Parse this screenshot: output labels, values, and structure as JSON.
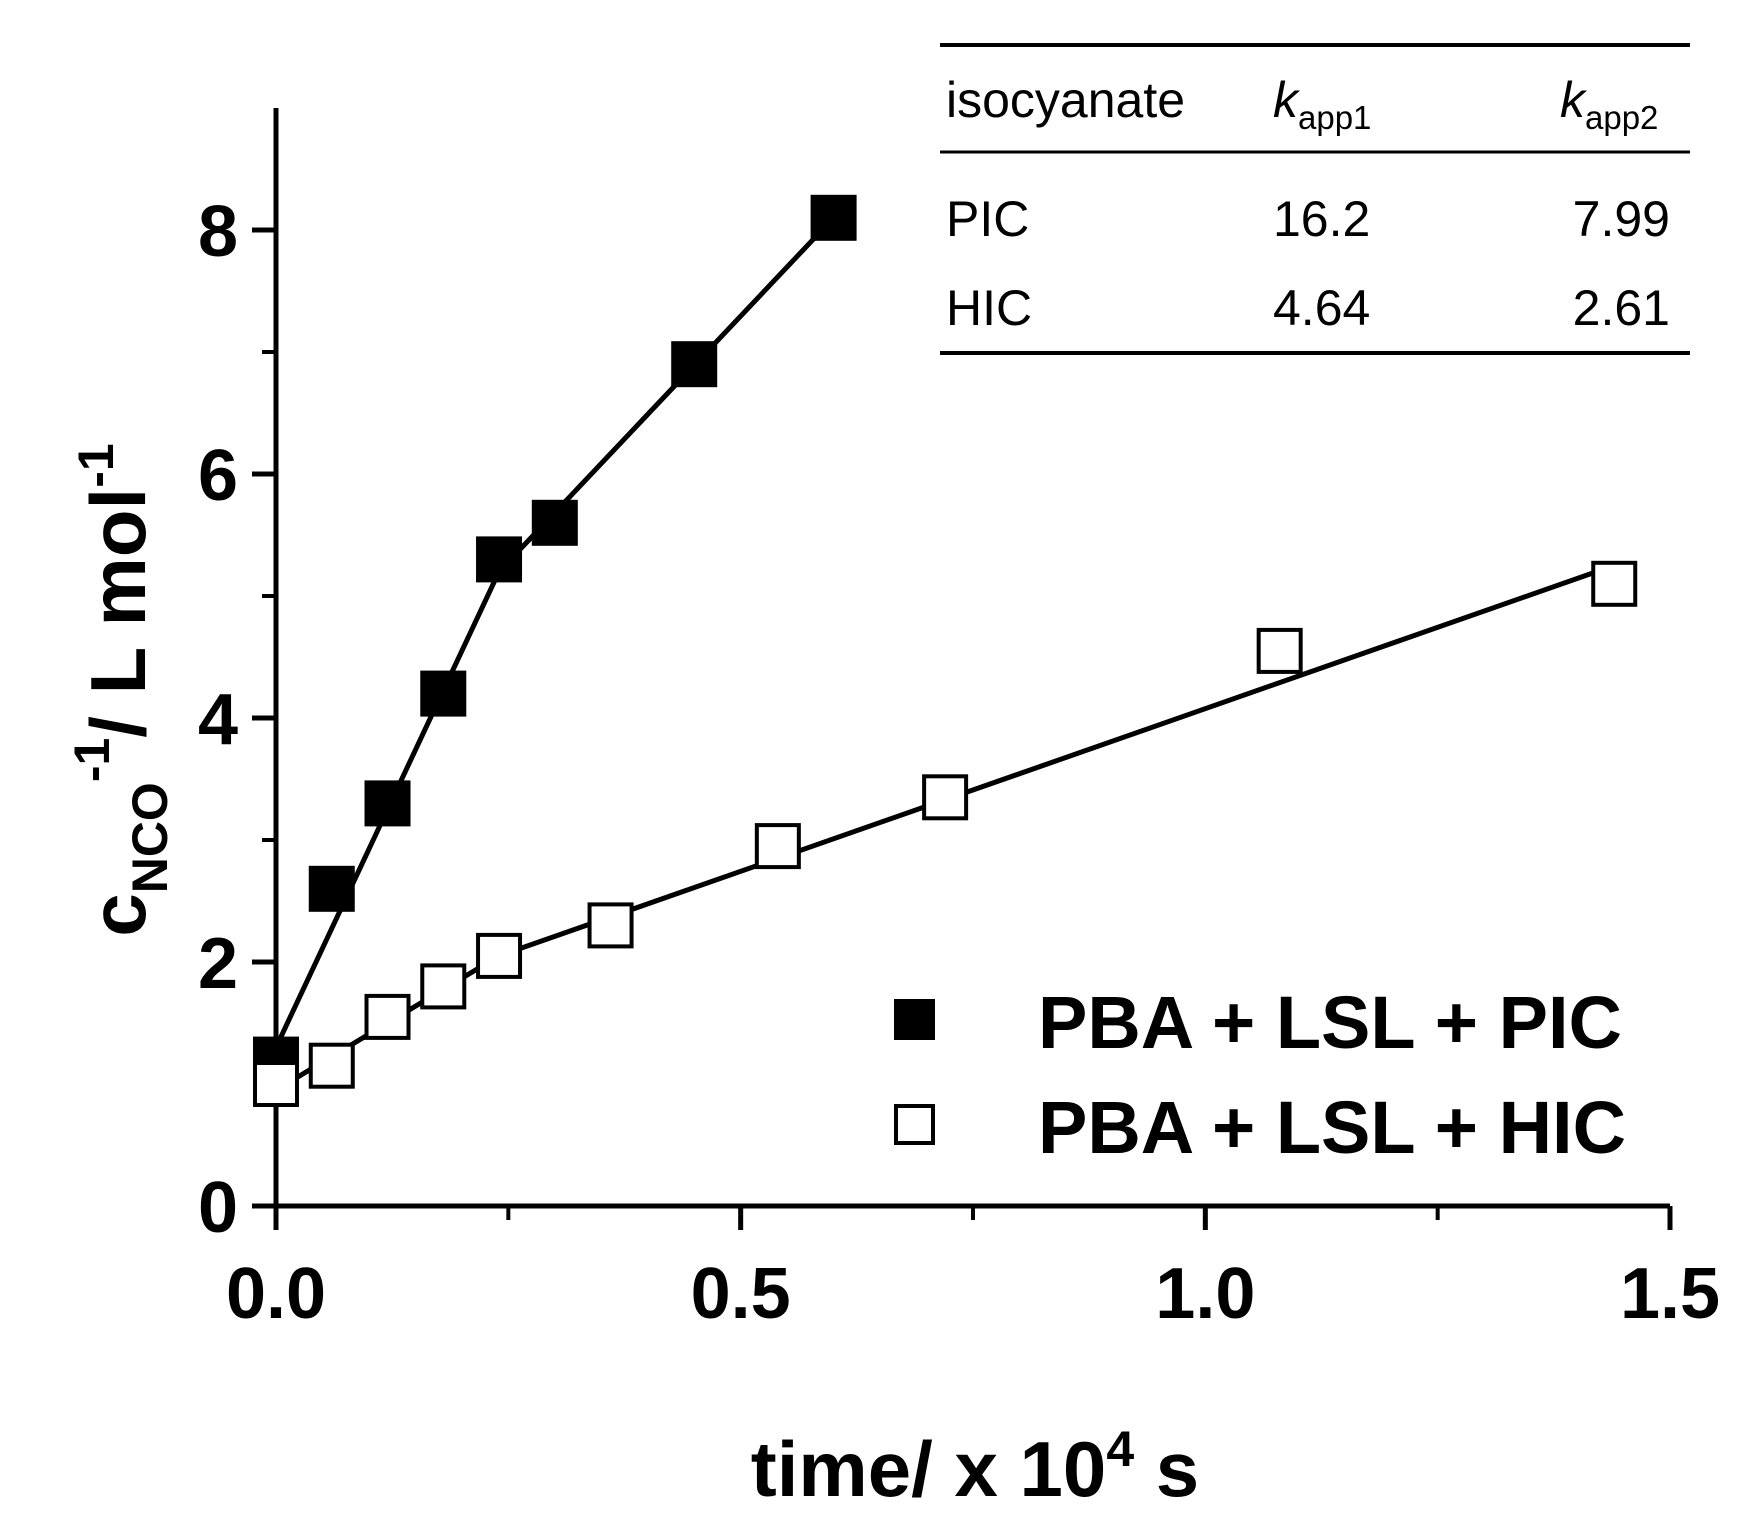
{
  "chart_data": {
    "type": "scatter",
    "xlabel": {
      "main": "time/ x 10",
      "sup": "4",
      "tail": " s"
    },
    "ylabel": {
      "main": "c",
      "sub": "NCO",
      "sup1": "-1",
      "mid": "/ L mol",
      "sup2": "-1"
    },
    "xlim": [
      0,
      1.5
    ],
    "ylim": [
      0,
      9
    ],
    "x_ticks": [
      "0.0",
      "0.5",
      "1.0",
      "1.5"
    ],
    "x_tick_values": [
      0,
      0.5,
      1.0,
      1.5
    ],
    "y_ticks": [
      "0",
      "2",
      "4",
      "6",
      "8"
    ],
    "y_tick_values": [
      0,
      2,
      4,
      6,
      8
    ],
    "series": [
      {
        "name": "PBA + LSL + PIC",
        "marker": "filled-square",
        "x": [
          0.0,
          0.06,
          0.12,
          0.18,
          0.24,
          0.3,
          0.45,
          0.6
        ],
        "y": [
          1.2,
          2.6,
          3.3,
          4.2,
          5.3,
          5.6,
          6.9,
          8.1
        ],
        "fit_line": {
          "x": [
            0.0,
            0.24,
            0.6
          ],
          "y": [
            1.3,
            5.2,
            8.1
          ]
        }
      },
      {
        "name": "PBA + LSL + HIC",
        "marker": "open-square",
        "x": [
          0.0,
          0.06,
          0.12,
          0.18,
          0.24,
          0.36,
          0.54,
          0.72,
          1.08,
          1.44
        ],
        "y": [
          1.0,
          1.15,
          1.55,
          1.8,
          2.05,
          2.3,
          2.95,
          3.35,
          4.55,
          5.1
        ],
        "fit_line": {
          "x": [
            0.0,
            0.24,
            1.44
          ],
          "y": [
            0.95,
            2.05,
            5.25
          ]
        }
      }
    ],
    "legend": {
      "position": "bottom-right",
      "items": [
        "PBA + LSL + PIC",
        "PBA + LSL + HIC"
      ]
    },
    "inset_table": {
      "headers": [
        {
          "main": "isocyanate",
          "italic": false,
          "sub": ""
        },
        {
          "main": "k",
          "italic": true,
          "sub": "app1"
        },
        {
          "main": "k",
          "italic": true,
          "sub": "app2"
        }
      ],
      "rows": [
        [
          "PIC",
          "16.2",
          "7.99"
        ],
        [
          "HIC",
          "4.64",
          "2.61"
        ]
      ]
    }
  }
}
